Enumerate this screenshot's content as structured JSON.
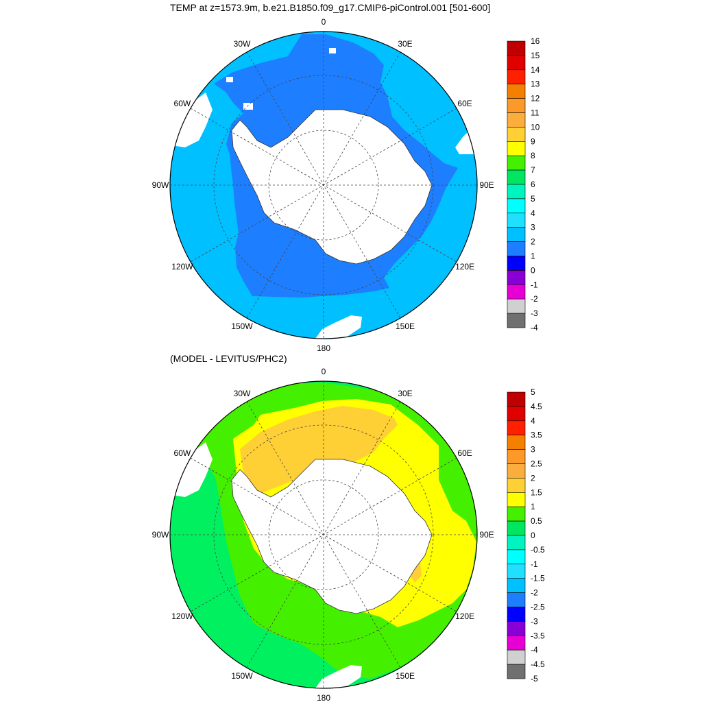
{
  "top_panel": {
    "title": "TEMP at z=1573.9m, b.e21.B1850.f09_g17.CMIP6-piControl.001 [501-600]",
    "longitude_labels": [
      "0",
      "30E",
      "60E",
      "90E",
      "120E",
      "150E",
      "180",
      "150W",
      "120W",
      "90W",
      "60W",
      "30W"
    ],
    "colorbar_labels": [
      "16",
      "15",
      "14",
      "13",
      "12",
      "11",
      "10",
      "9",
      "8",
      "7",
      "6",
      "5",
      "4",
      "3",
      "2",
      "1",
      "0",
      "-1",
      "-2",
      "-3",
      "-4"
    ],
    "colorbar_colors": [
      "#c00000",
      "#e00000",
      "#ff2000",
      "#f57f00",
      "#fb9a29",
      "#fbae3d",
      "#ffd035",
      "#ffff00",
      "#44f000",
      "#00e660",
      "#00f4c0",
      "#00ffff",
      "#20e0ff",
      "#00c0ff",
      "#1d7fff",
      "#0000ff",
      "#8800d5",
      "#e600d4",
      "#d0d0d0",
      "#707070"
    ]
  },
  "bottom_panel": {
    "title": "(MODEL - LEVITUS/PHC2)",
    "longitude_labels": [
      "0",
      "30E",
      "60E",
      "90E",
      "120E",
      "150E",
      "180",
      "150W",
      "120W",
      "90W",
      "60W",
      "30W"
    ],
    "colorbar_labels": [
      "5",
      "4.5",
      "4",
      "3.5",
      "3",
      "2.5",
      "2",
      "1.5",
      "1",
      "0.5",
      "0",
      "-0.5",
      "-1",
      "-1.5",
      "-2",
      "-2.5",
      "-3",
      "-3.5",
      "-4",
      "-4.5",
      "-5"
    ],
    "colorbar_colors": [
      "#c00000",
      "#e00000",
      "#ff2000",
      "#f57f00",
      "#fb9a29",
      "#fbae3d",
      "#ffd035",
      "#ffff00",
      "#44f000",
      "#00e660",
      "#00f4c0",
      "#00ffff",
      "#20e0ff",
      "#00c0ff",
      "#1d7fff",
      "#0000ff",
      "#8800d5",
      "#e600d4",
      "#d0d0d0",
      "#707070"
    ]
  },
  "colors": {
    "top_outer": "#00c0ff",
    "top_inner": "#1d7fff",
    "land": "#ffffff",
    "bottom_outer": "#00f060",
    "bottom_mid": "#44f000",
    "bottom_yellow": "#ffff00",
    "bottom_orange": "#ffd035"
  }
}
